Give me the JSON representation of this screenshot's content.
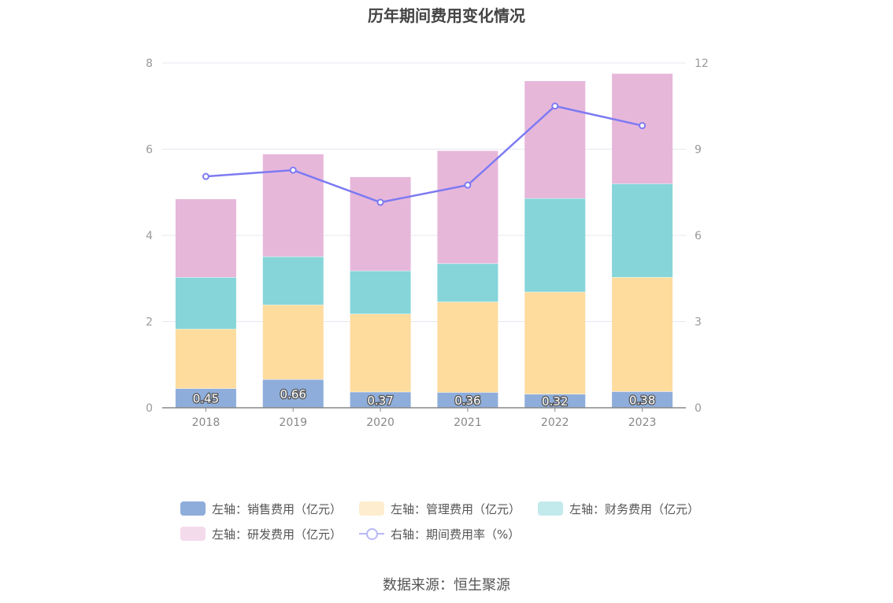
{
  "title": "历年期间费用变化情况",
  "source": "数据来源：恒生聚源",
  "colors": {
    "sales": "#8eaddb",
    "admin": "#fedc9e",
    "finance": "#86d5d9",
    "rnd": "#e7b7da",
    "rate": "#7d7bf2",
    "axis": "#888888",
    "grid": "#e6e8f2"
  },
  "legend": [
    {
      "label": "左轴：销售费用（亿元）",
      "color": "#8eaddb",
      "kind": "box",
      "opacity": 1
    },
    {
      "label": "左轴：管理费用（亿元）",
      "color": "#fedc9e",
      "kind": "box",
      "opacity": 0.5
    },
    {
      "label": "左轴：财务费用（亿元）",
      "color": "#86d5d9",
      "kind": "box",
      "opacity": 0.5
    },
    {
      "label": "左轴：研发费用（亿元）",
      "color": "#e7b7da",
      "kind": "box",
      "opacity": 0.5
    },
    {
      "label": "右轴：期间费用率（%）",
      "color": "#b7b9f6",
      "kind": "line",
      "opacity": 1
    }
  ],
  "chart_data": {
    "type": "bar",
    "stacked": true,
    "title": "历年期间费用变化情况",
    "categories": [
      "2018",
      "2019",
      "2020",
      "2021",
      "2022",
      "2023"
    ],
    "series": [
      {
        "name": "左轴：销售费用（亿元）",
        "axis": "left",
        "values": [
          0.45,
          0.66,
          0.37,
          0.36,
          0.32,
          0.38
        ],
        "labels": [
          "0.45",
          "0.66",
          "0.37",
          "0.36",
          "0.32",
          "0.38"
        ]
      },
      {
        "name": "左轴：管理费用（亿元）",
        "axis": "left",
        "values": [
          1.38,
          1.73,
          1.81,
          2.1,
          2.37,
          2.65
        ]
      },
      {
        "name": "左轴：财务费用（亿元）",
        "axis": "left",
        "values": [
          1.2,
          1.12,
          1.0,
          0.89,
          2.17,
          2.17
        ]
      },
      {
        "name": "左轴：研发费用（亿元）",
        "axis": "left",
        "values": [
          1.82,
          2.38,
          2.18,
          2.62,
          2.73,
          2.56
        ]
      },
      {
        "name": "右轴：期间费用率（%）",
        "axis": "right",
        "type": "line",
        "values": [
          8.05,
          8.27,
          7.15,
          7.75,
          10.5,
          9.82
        ]
      }
    ],
    "left_axis": {
      "min": 0,
      "max": 8,
      "ticks": [
        "0",
        "2",
        "4",
        "6",
        "8"
      ]
    },
    "right_axis": {
      "min": 0,
      "max": 12,
      "ticks": [
        "0",
        "3",
        "6",
        "9",
        "12"
      ]
    },
    "grid": true,
    "legend_position": "bottom"
  }
}
